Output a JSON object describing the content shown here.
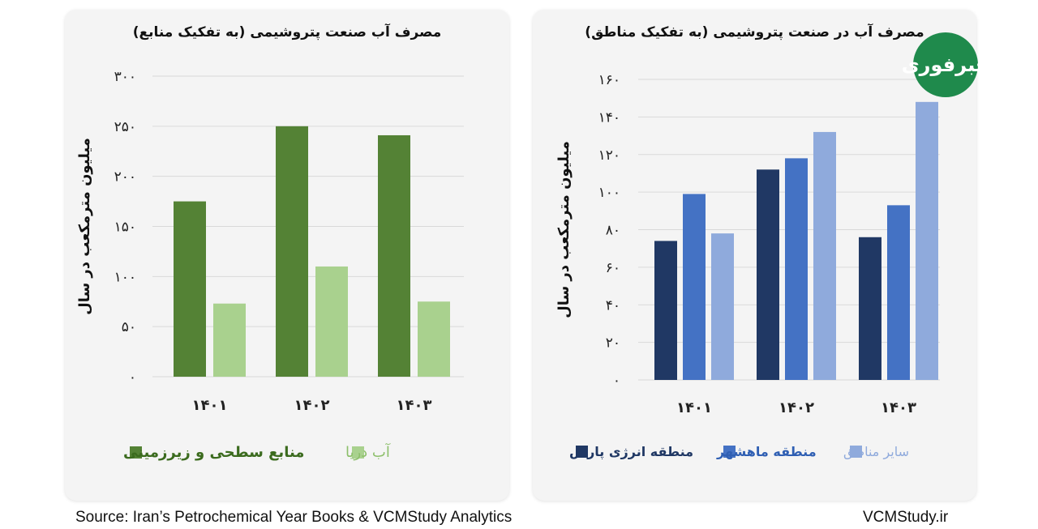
{
  "logo": {
    "text": "خبرفوری"
  },
  "footer": {
    "source": "Source: Iran’s Petrochemical Year Books & VCMStudy Analytics",
    "site": "VCMStudy.ir"
  },
  "chart_data": [
    {
      "type": "bar",
      "title": "مصرف آب صنعت پتروشیمی (به تفکیک منابع)",
      "ylabel": "میلیون مترمکعب در سال",
      "categories": [
        "۱۴۰۱",
        "۱۴۰۲",
        "۱۴۰۳"
      ],
      "yticks": [
        0,
        50,
        100,
        150,
        200,
        250,
        300
      ],
      "ytick_labels": [
        "۰",
        "۵۰",
        "۱۰۰",
        "۱۵۰",
        "۲۰۰",
        "۲۵۰",
        "۳۰۰"
      ],
      "ylim": [
        0,
        300
      ],
      "grid": true,
      "legend_position": "bottom",
      "series": [
        {
          "name": "منابع سطحی و زیرزمینی",
          "values": [
            175,
            250,
            241
          ],
          "color": "#548235"
        },
        {
          "name": "آب دریا",
          "values": [
            73,
            110,
            75
          ],
          "color": "#a9d18e"
        }
      ]
    },
    {
      "type": "bar",
      "title": "مصرف آب در صنعت پتروشیمی (به تفکیک مناطق)",
      "ylabel": "میلیون مترمکعب در سال",
      "categories": [
        "۱۴۰۱",
        "۱۴۰۲",
        "۱۴۰۳"
      ],
      "yticks": [
        0,
        20,
        40,
        60,
        80,
        100,
        120,
        140,
        160
      ],
      "ytick_labels": [
        "۰",
        "۲۰",
        "۴۰",
        "۶۰",
        "۸۰",
        "۱۰۰",
        "۱۲۰",
        "۱۴۰",
        "۱۶۰"
      ],
      "ylim": [
        0,
        160
      ],
      "grid": true,
      "legend_position": "bottom",
      "series": [
        {
          "name": "منطقه انرژی پارس",
          "values": [
            74,
            112,
            76
          ],
          "color": "#203864"
        },
        {
          "name": "منطقه ماهشهر",
          "values": [
            99,
            118,
            93
          ],
          "color": "#4472c4"
        },
        {
          "name": "سایر مناطق",
          "values": [
            78,
            132,
            148
          ],
          "color": "#8faadc"
        }
      ]
    }
  ]
}
